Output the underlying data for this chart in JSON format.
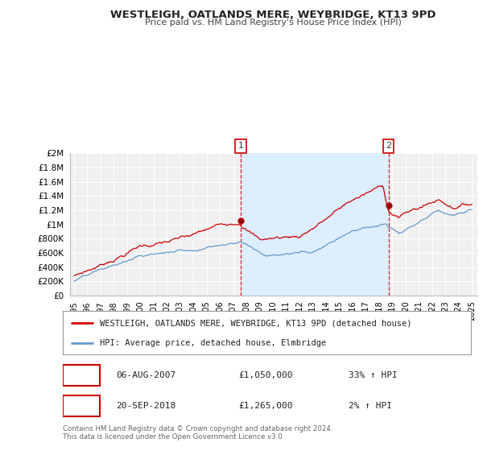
{
  "title": "WESTLEIGH, OATLANDS MERE, WEYBRIDGE, KT13 9PD",
  "subtitle": "Price paid vs. HM Land Registry's House Price Index (HPI)",
  "red_label": "WESTLEIGH, OATLANDS MERE, WEYBRIDGE, KT13 9PD (detached house)",
  "blue_label": "HPI: Average price, detached house, Elmbridge",
  "transaction1_date": "06-AUG-2007",
  "transaction1_price": "£1,050,000",
  "transaction1_hpi": "33% ↑ HPI",
  "transaction1_x": 2007.583,
  "transaction1_y": 1050000,
  "transaction2_date": "20-SEP-2018",
  "transaction2_price": "£1,265,000",
  "transaction2_hpi": "2% ↑ HPI",
  "transaction2_x": 2018.708,
  "transaction2_y": 1265000,
  "ylim": [
    0,
    2000000
  ],
  "xlim": [
    1994.7,
    2025.4
  ],
  "yticks": [
    0,
    200000,
    400000,
    600000,
    800000,
    1000000,
    1200000,
    1400000,
    1600000,
    1800000,
    2000000
  ],
  "ytick_labels": [
    "£0",
    "£200K",
    "£400K",
    "£600K",
    "£800K",
    "£1M",
    "£1.2M",
    "£1.4M",
    "£1.6M",
    "£1.8M",
    "£2M"
  ],
  "xticks": [
    1995,
    1996,
    1997,
    1998,
    1999,
    2000,
    2001,
    2002,
    2003,
    2004,
    2005,
    2006,
    2007,
    2008,
    2009,
    2010,
    2011,
    2012,
    2013,
    2014,
    2015,
    2016,
    2017,
    2018,
    2019,
    2020,
    2021,
    2022,
    2023,
    2024,
    2025
  ],
  "red_color": "#cc0000",
  "blue_color": "#6699cc",
  "shade_color": "#ddeeff",
  "bg_color": "#ffffff",
  "plot_bg": "#f0f0f0",
  "grid_color": "#ffffff",
  "footnote": "Contains HM Land Registry data © Crown copyright and database right 2024.\nThis data is licensed under the Open Government Licence v3.0."
}
